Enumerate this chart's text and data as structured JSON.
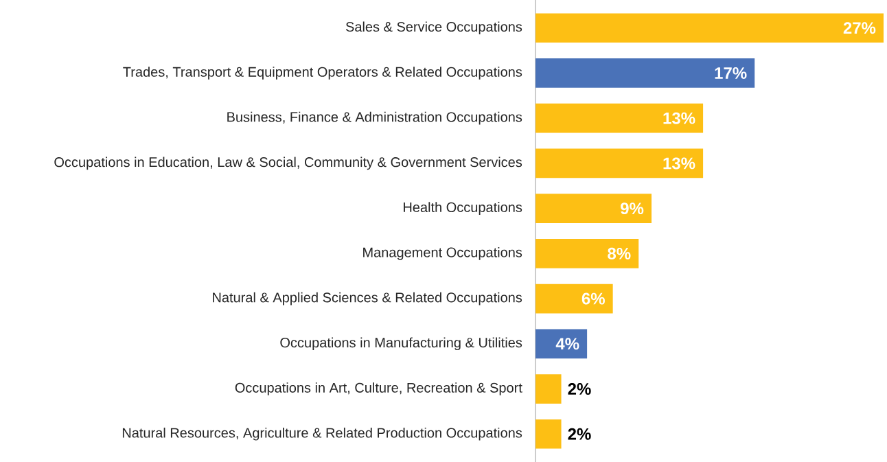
{
  "chart_data": {
    "type": "bar",
    "orientation": "horizontal",
    "categories": [
      "Sales & Service Occupations",
      "Trades, Transport & Equipment Operators & Related Occupations",
      "Business, Finance & Administration Occupations",
      "Occupations in Education, Law & Social, Community & Government Services",
      "Health Occupations",
      "Management Occupations",
      "Natural & Applied Sciences & Related Occupations",
      "Occupations in Manufacturing & Utilities",
      "Occupations in Art, Culture, Recreation & Sport",
      "Natural Resources, Agriculture & Related Production Occupations"
    ],
    "values": [
      27,
      17,
      13,
      13,
      9,
      8,
      6,
      4,
      2,
      2
    ],
    "colors": [
      "#fdbf14",
      "#4a72b8",
      "#fdbf14",
      "#fdbf14",
      "#fdbf14",
      "#fdbf14",
      "#fdbf14",
      "#4a72b8",
      "#fdbf14",
      "#fdbf14"
    ],
    "value_labels": [
      "27%",
      "17%",
      "13%",
      "13%",
      "9%",
      "8%",
      "6%",
      "4%",
      "2%",
      "2%"
    ]
  }
}
